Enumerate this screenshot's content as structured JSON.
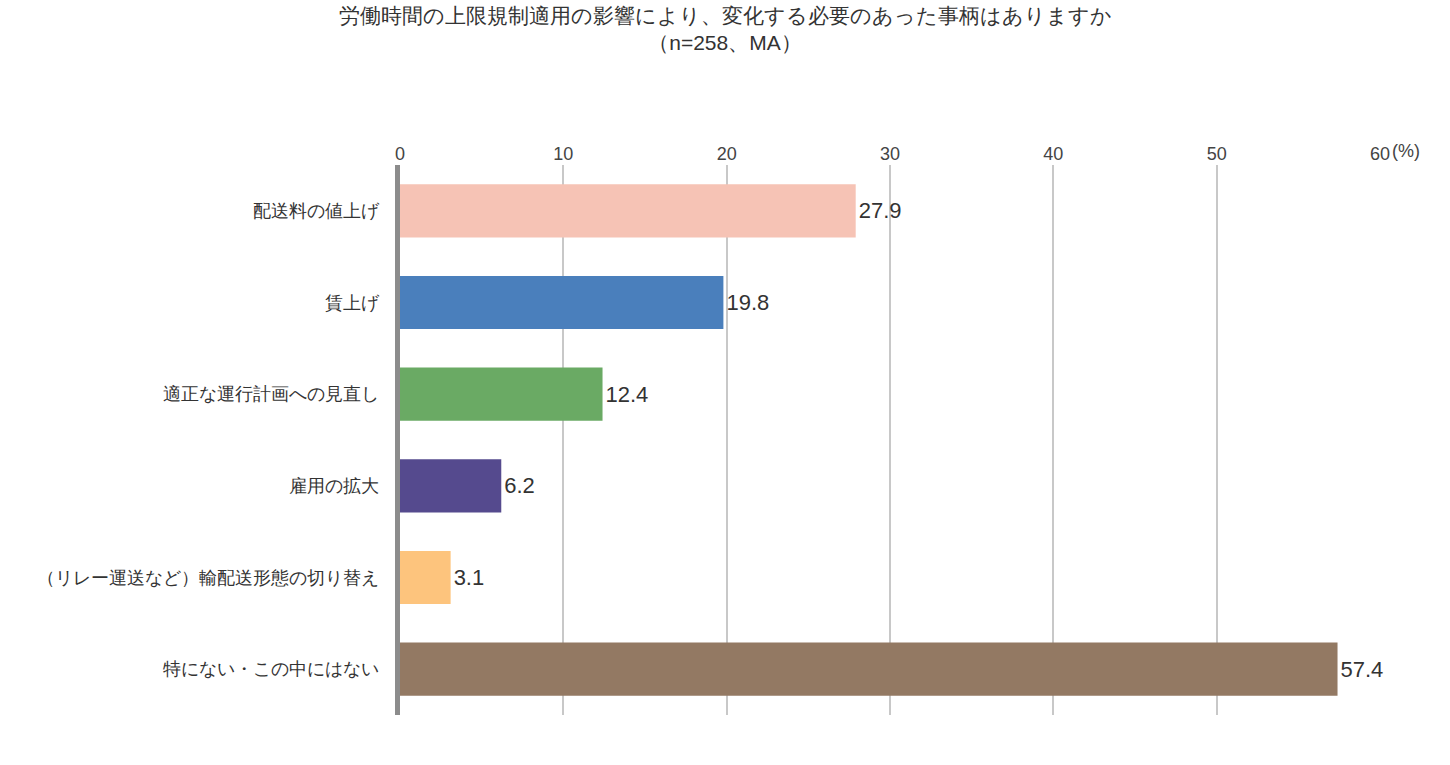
{
  "chart_data": {
    "type": "bar",
    "orientation": "horizontal",
    "title": "労働時間の上限規制適用の影響により、変化する必要のあった事柄はありますか",
    "subtitle": "（n=258、MA）",
    "x_label": "(%)",
    "categories": [
      "配送料の値上げ",
      "賃上げ",
      "適正な運行計画への見直し",
      "雇用の拡大",
      "（リレー運送など）輸配送形態の切り替え",
      "特にない・この中にはない"
    ],
    "values": [
      27.9,
      19.8,
      12.4,
      6.2,
      3.1,
      57.4
    ],
    "colors": [
      "#f6c3b5",
      "#4a7fbc",
      "#6aaa64",
      "#554a8e",
      "#fdc47d",
      "#937963"
    ],
    "xlim": [
      0,
      60
    ],
    "xticks": [
      0,
      10,
      20,
      30,
      40,
      50,
      60
    ],
    "grid": true,
    "data_labels": true
  }
}
